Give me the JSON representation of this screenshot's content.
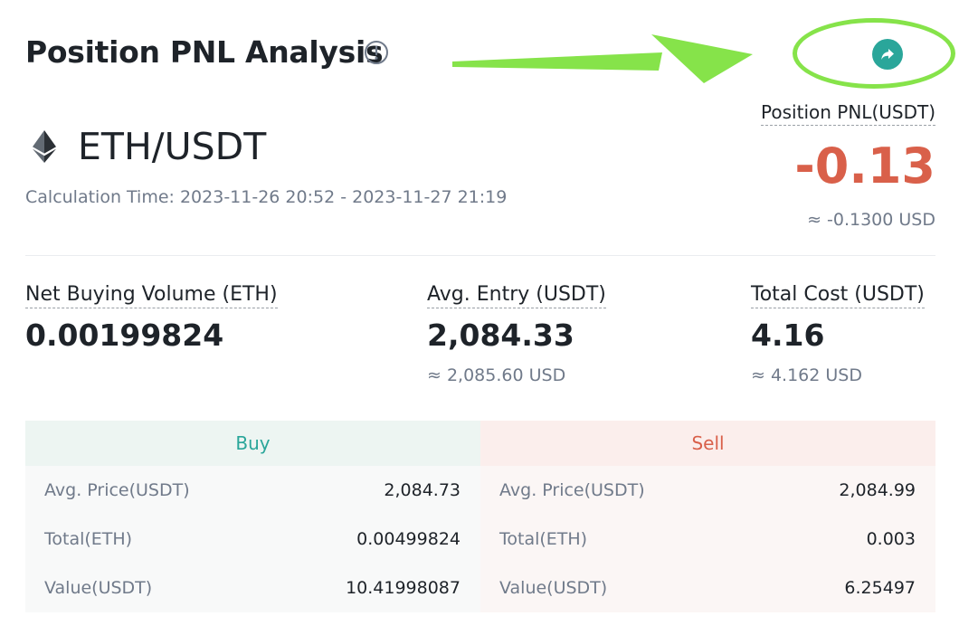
{
  "header": {
    "title": "Position PNL Analysis"
  },
  "pnl": {
    "label": "Position PNL(USDT)",
    "value": "-0.13",
    "usd": "≈ -0.1300 USD"
  },
  "pair": {
    "symbol": "ETH/USDT",
    "calc_time": "Calculation Time: 2023-11-26 20:52 - 2023-11-27 21:19"
  },
  "metrics": [
    {
      "label": "Net Buying Volume (ETH)",
      "value": "0.00199824",
      "sub": ""
    },
    {
      "label": "Avg. Entry (USDT)",
      "value": "2,084.33",
      "sub": "≈  2,085.60  USD"
    },
    {
      "label": "Total Cost (USDT)",
      "value": "4.16",
      "sub": "≈ 4.162 USD"
    }
  ],
  "table": {
    "buy": {
      "title": "Buy",
      "rows": [
        {
          "label": "Avg. Price(USDT)",
          "value": "2,084.73"
        },
        {
          "label": "Total(ETH)",
          "value": "0.00499824"
        },
        {
          "label": "Value(USDT)",
          "value": "10.41998087"
        }
      ]
    },
    "sell": {
      "title": "Sell",
      "rows": [
        {
          "label": "Avg. Price(USDT)",
          "value": "2,084.99"
        },
        {
          "label": "Total(ETH)",
          "value": "0.003"
        },
        {
          "label": "Value(USDT)",
          "value": "6.25497"
        }
      ]
    }
  },
  "icons": {
    "info": "info-circle-icon",
    "share": "share-arrow-icon",
    "eth": "ethereum-icon"
  },
  "colors": {
    "negative": "#d9604a",
    "positive": "#2aa69a",
    "annotation": "#86e34a"
  }
}
